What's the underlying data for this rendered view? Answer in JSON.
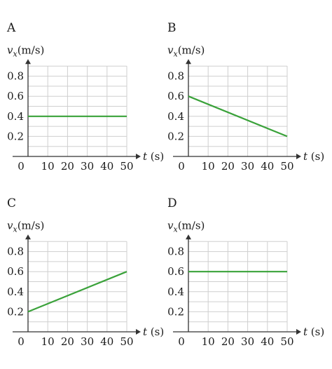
{
  "chart_data": [
    {
      "type": "line",
      "panel_label": "A",
      "ylabel": {
        "symbol": "v",
        "subscript": "x",
        "unit": "(m/s)"
      },
      "xlabel": {
        "symbol": "t",
        "unit": "(s)"
      },
      "x_ticks": [
        "0",
        "10",
        "20",
        "30",
        "40",
        "50"
      ],
      "y_ticks": [
        "0.2",
        "0.4",
        "0.6",
        "0.8"
      ],
      "xlim": [
        0,
        50
      ],
      "ylim": [
        0,
        0.9
      ],
      "grid": true,
      "color": "#3aa23a",
      "x": [
        0,
        50
      ],
      "y": [
        0.4,
        0.4
      ]
    },
    {
      "type": "line",
      "panel_label": "B",
      "ylabel": {
        "symbol": "v",
        "subscript": "x",
        "unit": "(m/s)"
      },
      "xlabel": {
        "symbol": "t",
        "unit": "(s)"
      },
      "x_ticks": [
        "0",
        "10",
        "20",
        "30",
        "40",
        "50"
      ],
      "y_ticks": [
        "0.2",
        "0.4",
        "0.6",
        "0.8"
      ],
      "xlim": [
        0,
        50
      ],
      "ylim": [
        0,
        0.9
      ],
      "grid": true,
      "color": "#3aa23a",
      "x": [
        0,
        50
      ],
      "y": [
        0.6,
        0.2
      ]
    },
    {
      "type": "line",
      "panel_label": "C",
      "ylabel": {
        "symbol": "v",
        "subscript": "x",
        "unit": "(m/s)"
      },
      "xlabel": {
        "symbol": "t",
        "unit": "(s)"
      },
      "x_ticks": [
        "0",
        "10",
        "20",
        "30",
        "40",
        "50"
      ],
      "y_ticks": [
        "0.2",
        "0.4",
        "0.6",
        "0.8"
      ],
      "xlim": [
        0,
        50
      ],
      "ylim": [
        0,
        0.9
      ],
      "grid": true,
      "color": "#3aa23a",
      "x": [
        0,
        50
      ],
      "y": [
        0.2,
        0.6
      ]
    },
    {
      "type": "line",
      "panel_label": "D",
      "ylabel": {
        "symbol": "v",
        "subscript": "x",
        "unit": "(m/s)"
      },
      "xlabel": {
        "symbol": "t",
        "unit": "(s)"
      },
      "x_ticks": [
        "0",
        "10",
        "20",
        "30",
        "40",
        "50"
      ],
      "y_ticks": [
        "0.2",
        "0.4",
        "0.6",
        "0.8"
      ],
      "xlim": [
        0,
        50
      ],
      "ylim": [
        0,
        0.9
      ],
      "grid": true,
      "color": "#3aa23a",
      "x": [
        0,
        50
      ],
      "y": [
        0.6,
        0.6
      ]
    }
  ]
}
